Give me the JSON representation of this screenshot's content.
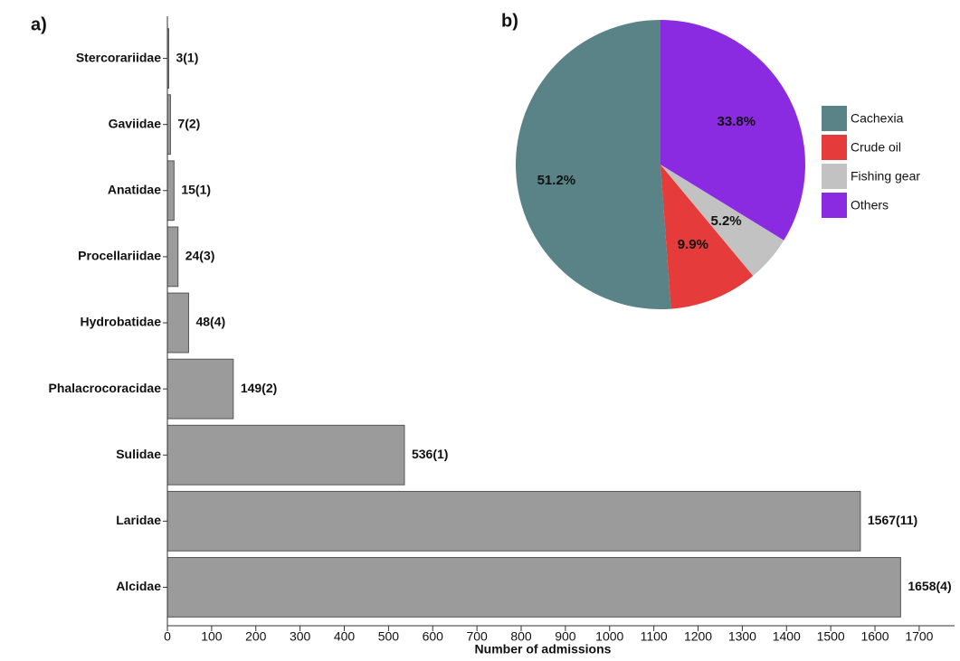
{
  "chart_data": [
    {
      "type": "bar",
      "orientation": "horizontal",
      "panel_label": "a)",
      "categories": [
        "Stercorariidae",
        "Gaviidae",
        "Anatidae",
        "Procellariidae",
        "Hydrobatidae",
        "Phalacrocoracidae",
        "Sulidae",
        "Laridae",
        "Alcidae"
      ],
      "values": [
        3,
        7,
        15,
        24,
        48,
        149,
        536,
        1567,
        1658
      ],
      "value_labels": [
        "3(1)",
        "7(2)",
        "15(1)",
        "24(3)",
        "48(4)",
        "149(2)",
        "536(1)",
        "1567(11)",
        "1658(4)"
      ],
      "color": "#9b9b9b",
      "xlabel": "Number of admissions",
      "xlim": [
        0,
        1780
      ],
      "xticks": [
        0,
        100,
        200,
        300,
        400,
        500,
        600,
        700,
        800,
        900,
        1000,
        1100,
        1200,
        1300,
        1400,
        1500,
        1600,
        1700
      ]
    },
    {
      "type": "pie",
      "panel_label": "b)",
      "categories": [
        "Cachexia",
        "Crude oil",
        "Fishing gear",
        "Others"
      ],
      "values": [
        51.2,
        9.9,
        5.2,
        33.8
      ],
      "value_labels": [
        "51.2%",
        "9.9%",
        "5.2%",
        "33.8%"
      ],
      "colors": [
        "#598387",
        "#e63b3b",
        "#c2c2c2",
        "#8a2be2"
      ],
      "legend": "right"
    }
  ]
}
